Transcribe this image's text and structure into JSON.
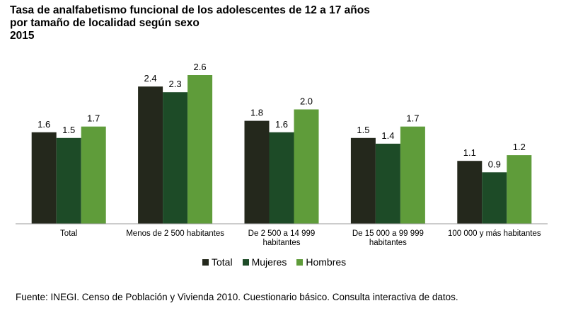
{
  "title_lines": [
    "Tasa de analfabetismo funcional de los adolescentes de 12 a 17 años",
    "por tamaño de localidad según sexo",
    "2015"
  ],
  "source": "Fuente: INEGI. Censo de Población y Vivienda 2010. Cuestionario básico. Consulta interactiva de datos.",
  "colors": {
    "Total": "#24281c",
    "Mujeres": "#1d4b27",
    "Hombres": "#5f9c3a"
  },
  "chart_data": {
    "type": "bar",
    "title": "Tasa de analfabetismo funcional de los adolescentes de 12 a 17 años por tamaño de localidad según sexo 2015",
    "categories": [
      [
        "Total"
      ],
      [
        "Menos de 2 500 habitantes"
      ],
      [
        "De 2 500 a 14 999",
        "habitantes"
      ],
      [
        "De 15 000 a 99 999",
        "habitantes"
      ],
      [
        "100 000 y más habitantes"
      ]
    ],
    "series": [
      {
        "name": "Total",
        "values": [
          1.6,
          2.4,
          1.8,
          1.5,
          1.1
        ]
      },
      {
        "name": "Mujeres",
        "values": [
          1.5,
          2.3,
          1.6,
          1.4,
          0.9
        ]
      },
      {
        "name": "Hombres",
        "values": [
          1.7,
          2.6,
          2.0,
          1.7,
          1.2
        ]
      }
    ],
    "ylim": [
      0,
      2.6
    ],
    "grid": false,
    "legend_position": "bottom"
  }
}
